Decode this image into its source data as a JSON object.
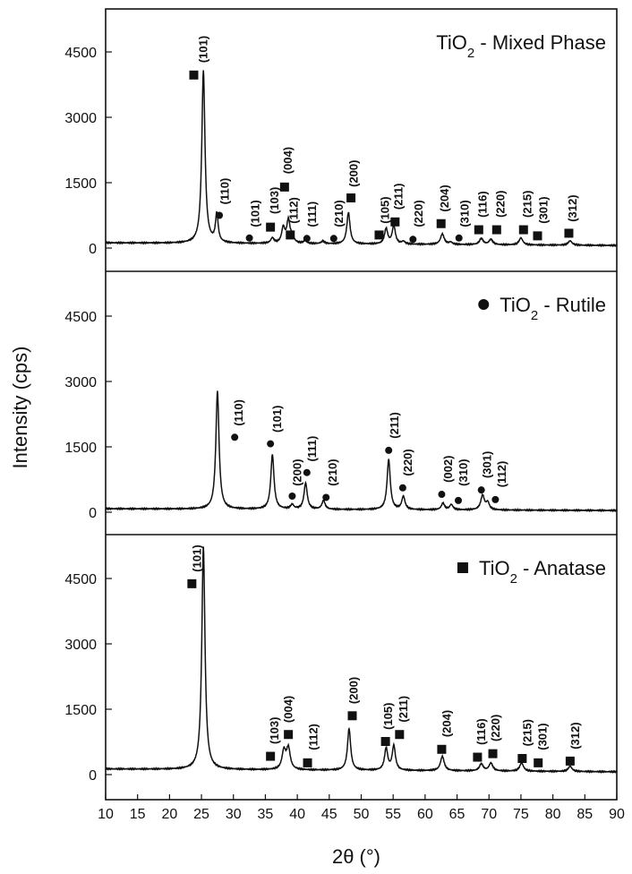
{
  "chart_data": {
    "type": "line",
    "xlabel": "2θ (°)",
    "ylabel": "Intensity (cps)",
    "xlim": [
      10,
      90
    ],
    "xticks": [
      10,
      15,
      20,
      25,
      30,
      35,
      40,
      45,
      50,
      55,
      60,
      65,
      70,
      75,
      80,
      85,
      90
    ],
    "ylim": [
      -150,
      5200
    ],
    "yticks": [
      0,
      1500,
      3000,
      4500
    ],
    "stacked_panels": true,
    "panels": [
      {
        "title_main": "TiO",
        "title_sub": "2",
        "title_rest": " - Mixed Phase",
        "legend_marker": "none",
        "peaks": [
          {
            "x": 25.3,
            "y": 3950,
            "w": 0.3
          },
          {
            "x": 27.4,
            "y": 650,
            "w": 0.25
          },
          {
            "x": 36.1,
            "y": 120,
            "w": 0.3
          },
          {
            "x": 37.8,
            "y": 350,
            "w": 0.3
          },
          {
            "x": 38.6,
            "y": 520,
            "w": 0.3
          },
          {
            "x": 39.2,
            "y": 150,
            "w": 0.3
          },
          {
            "x": 41.2,
            "y": 60,
            "w": 0.3
          },
          {
            "x": 44.0,
            "y": 60,
            "w": 0.3
          },
          {
            "x": 48.0,
            "y": 720,
            "w": 0.3
          },
          {
            "x": 53.9,
            "y": 350,
            "w": 0.3
          },
          {
            "x": 55.1,
            "y": 420,
            "w": 0.3
          },
          {
            "x": 56.6,
            "y": 60,
            "w": 0.3
          },
          {
            "x": 62.7,
            "y": 240,
            "w": 0.35
          },
          {
            "x": 64.0,
            "y": 50,
            "w": 0.3
          },
          {
            "x": 68.8,
            "y": 140,
            "w": 0.35
          },
          {
            "x": 70.3,
            "y": 120,
            "w": 0.35
          },
          {
            "x": 75.0,
            "y": 160,
            "w": 0.35
          },
          {
            "x": 82.7,
            "y": 100,
            "w": 0.35
          }
        ],
        "baseline": 120,
        "labels": [
          {
            "text": "(101)",
            "x": 25.3,
            "y": 4250,
            "marker": "square",
            "mx": 23.8,
            "my": 3970
          },
          {
            "text": "(110)",
            "x": 28.6,
            "y": 1000,
            "marker": "circle",
            "mx": 27.8,
            "my": 750
          },
          {
            "text": "(101)",
            "x": 33.4,
            "y": 480,
            "marker": "circle",
            "mx": 32.5,
            "my": 230
          },
          {
            "text": "(103)",
            "x": 36.4,
            "y": 780,
            "marker": "square",
            "mx": 35.8,
            "my": 480
          },
          {
            "text": "(004)",
            "x": 38.5,
            "y": 1700,
            "marker": "square",
            "mx": 38.0,
            "my": 1400
          },
          {
            "text": "(112)",
            "x": 39.4,
            "y": 560,
            "marker": "square",
            "mx": 38.9,
            "my": 300
          },
          {
            "text": "(111)",
            "x": 42.3,
            "y": 480,
            "marker": "circle",
            "mx": 41.5,
            "my": 220
          },
          {
            "text": "(210)",
            "x": 46.5,
            "y": 480,
            "marker": "circle",
            "mx": 45.7,
            "my": 220
          },
          {
            "text": "(200)",
            "x": 48.8,
            "y": 1400,
            "marker": "square",
            "mx": 48.4,
            "my": 1150
          },
          {
            "text": "(105)",
            "x": 53.7,
            "y": 560,
            "marker": "square",
            "mx": 52.8,
            "my": 300
          },
          {
            "text": "(211)",
            "x": 55.8,
            "y": 880,
            "marker": "square",
            "mx": 55.3,
            "my": 600
          },
          {
            "text": "(220)",
            "x": 59.0,
            "y": 480,
            "marker": "circle",
            "mx": 58.1,
            "my": 200
          },
          {
            "text": "(204)",
            "x": 63.0,
            "y": 830,
            "marker": "square",
            "mx": 62.5,
            "my": 560
          },
          {
            "text": "(310)",
            "x": 66.2,
            "y": 480,
            "marker": "circle",
            "mx": 65.3,
            "my": 230
          },
          {
            "text": "(116)",
            "x": 69.0,
            "y": 700,
            "marker": "square",
            "mx": 68.4,
            "my": 420
          },
          {
            "text": "(220)",
            "x": 71.8,
            "y": 700,
            "marker": "square",
            "mx": 71.2,
            "my": 420
          },
          {
            "text": "(215)",
            "x": 76.0,
            "y": 700,
            "marker": "square",
            "mx": 75.4,
            "my": 420
          },
          {
            "text": "(301)",
            "x": 78.5,
            "y": 560,
            "marker": "square",
            "mx": 77.6,
            "my": 280
          },
          {
            "text": "(312)",
            "x": 83.1,
            "y": 600,
            "marker": "square",
            "mx": 82.5,
            "my": 340
          }
        ]
      },
      {
        "title_main": "TiO",
        "title_sub": "2",
        "title_rest": " - Rutile",
        "legend_marker": "circle",
        "peaks": [
          {
            "x": 27.5,
            "y": 2700,
            "w": 0.3
          },
          {
            "x": 36.1,
            "y": 1250,
            "w": 0.3
          },
          {
            "x": 39.2,
            "y": 100,
            "w": 0.3
          },
          {
            "x": 41.3,
            "y": 600,
            "w": 0.3
          },
          {
            "x": 44.1,
            "y": 200,
            "w": 0.3
          },
          {
            "x": 54.3,
            "y": 1150,
            "w": 0.3
          },
          {
            "x": 56.6,
            "y": 300,
            "w": 0.3
          },
          {
            "x": 62.8,
            "y": 150,
            "w": 0.3
          },
          {
            "x": 64.1,
            "y": 120,
            "w": 0.3
          },
          {
            "x": 69.0,
            "y": 330,
            "w": 0.35
          },
          {
            "x": 69.8,
            "y": 160,
            "w": 0.3
          }
        ],
        "baseline": 80,
        "labels": [
          {
            "text": "(110)",
            "x": 30.8,
            "y": 1980,
            "marker": "circle",
            "mx": 30.2,
            "my": 1720
          },
          {
            "text": "(101)",
            "x": 36.8,
            "y": 1830,
            "marker": "circle",
            "mx": 35.8,
            "my": 1570
          },
          {
            "text": "(200)",
            "x": 40.0,
            "y": 600,
            "marker": "circle",
            "mx": 39.2,
            "my": 370
          },
          {
            "text": "(111)",
            "x": 42.3,
            "y": 1160,
            "marker": "circle",
            "mx": 41.5,
            "my": 910
          },
          {
            "text": "(210)",
            "x": 45.5,
            "y": 600,
            "marker": "circle",
            "mx": 44.5,
            "my": 340
          },
          {
            "text": "(211)",
            "x": 55.2,
            "y": 1690,
            "marker": "circle",
            "mx": 54.3,
            "my": 1420
          },
          {
            "text": "(220)",
            "x": 57.3,
            "y": 830,
            "marker": "circle",
            "mx": 56.5,
            "my": 560
          },
          {
            "text": "(002)",
            "x": 63.6,
            "y": 680,
            "marker": "circle",
            "mx": 62.6,
            "my": 410
          },
          {
            "text": "(310)",
            "x": 66.0,
            "y": 600,
            "marker": "circle",
            "mx": 65.2,
            "my": 270
          },
          {
            "text": "(301)",
            "x": 69.7,
            "y": 780,
            "marker": "circle",
            "mx": 68.8,
            "my": 510
          },
          {
            "text": "(112)",
            "x": 72.0,
            "y": 570,
            "marker": "circle",
            "mx": 71.0,
            "my": 290
          }
        ]
      },
      {
        "title_main": "TiO",
        "title_sub": "2",
        "title_rest": " - Anatase",
        "legend_marker": "square",
        "peaks": [
          {
            "x": 25.3,
            "y": 5100,
            "w": 0.3
          },
          {
            "x": 37.9,
            "y": 420,
            "w": 0.35
          },
          {
            "x": 38.6,
            "y": 480,
            "w": 0.35
          },
          {
            "x": 48.1,
            "y": 950,
            "w": 0.3
          },
          {
            "x": 53.9,
            "y": 500,
            "w": 0.3
          },
          {
            "x": 55.1,
            "y": 560,
            "w": 0.3
          },
          {
            "x": 62.7,
            "y": 330,
            "w": 0.35
          },
          {
            "x": 68.8,
            "y": 160,
            "w": 0.35
          },
          {
            "x": 70.3,
            "y": 180,
            "w": 0.35
          },
          {
            "x": 75.1,
            "y": 190,
            "w": 0.35
          },
          {
            "x": 82.7,
            "y": 120,
            "w": 0.35
          }
        ],
        "baseline": 130,
        "labels": [
          {
            "text": "(101)",
            "x": 24.3,
            "y": 4650,
            "marker": "square",
            "mx": 23.5,
            "my": 4380
          },
          {
            "text": "(103)",
            "x": 36.4,
            "y": 700,
            "marker": "square",
            "mx": 35.8,
            "my": 420
          },
          {
            "text": "(004)",
            "x": 38.6,
            "y": 1190,
            "marker": "square",
            "mx": 38.6,
            "my": 920
          },
          {
            "text": "(112)",
            "x": 42.5,
            "y": 560,
            "marker": "square",
            "mx": 41.6,
            "my": 270
          },
          {
            "text": "(200)",
            "x": 48.8,
            "y": 1620,
            "marker": "square",
            "mx": 48.6,
            "my": 1350
          },
          {
            "text": "(105)",
            "x": 54.2,
            "y": 1030,
            "marker": "square",
            "mx": 53.8,
            "my": 760
          },
          {
            "text": "(211)",
            "x": 56.6,
            "y": 1200,
            "marker": "square",
            "mx": 56.0,
            "my": 920
          },
          {
            "text": "(204)",
            "x": 63.4,
            "y": 860,
            "marker": "square",
            "mx": 62.6,
            "my": 580
          },
          {
            "text": "(116)",
            "x": 68.8,
            "y": 680,
            "marker": "square",
            "mx": 68.2,
            "my": 400
          },
          {
            "text": "(220)",
            "x": 71.0,
            "y": 760,
            "marker": "square",
            "mx": 70.6,
            "my": 480
          },
          {
            "text": "(215)",
            "x": 76.0,
            "y": 650,
            "marker": "square",
            "mx": 75.2,
            "my": 370
          },
          {
            "text": "(301)",
            "x": 78.4,
            "y": 560,
            "marker": "square",
            "mx": 77.7,
            "my": 270
          },
          {
            "text": "(312)",
            "x": 83.5,
            "y": 580,
            "marker": "square",
            "mx": 82.7,
            "my": 310
          }
        ]
      }
    ]
  },
  "colors": {
    "line": "#111111",
    "frame": "#111111",
    "background": "#ffffff"
  }
}
